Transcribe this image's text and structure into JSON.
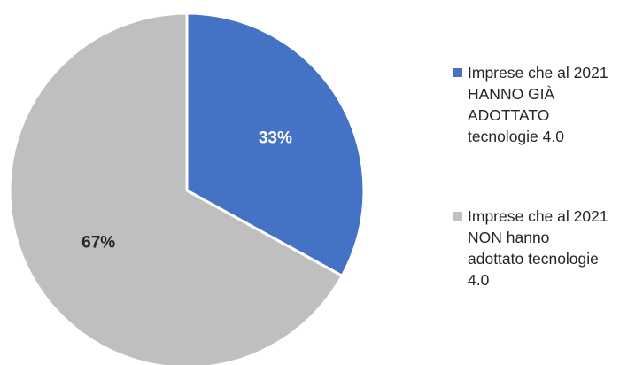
{
  "chart_data": {
    "type": "pie",
    "title": "",
    "slices": [
      {
        "label_lines": [
          "Imprese che al 2021",
          "HANNO GIÀ",
          "ADOTTATO",
          "tecnologie 4.0"
        ],
        "value": 33,
        "value_label": "33%",
        "color": "#4472c4",
        "label_color": "#ffffff"
      },
      {
        "label_lines": [
          "Imprese che al 2021",
          "NON hanno",
          "adottato tecnologie",
          "4.0"
        ],
        "value": 67,
        "value_label": "67%",
        "color": "#bfbfbf",
        "label_color": "#262626"
      }
    ],
    "legend_position": "right",
    "start_angle": "12 o'clock",
    "direction": "clockwise"
  }
}
